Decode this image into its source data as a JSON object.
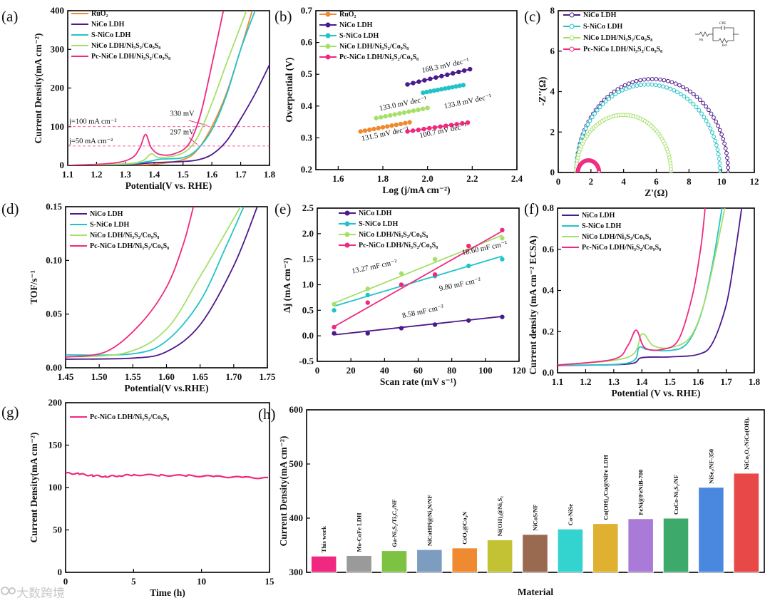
{
  "colors": {
    "ruo2": "#F08a30",
    "nico": "#4B1A8C",
    "snico": "#22C3C8",
    "nicos": "#A6E06A",
    "pc": "#F0287F"
  },
  "watermark": "大数跨境",
  "chart_data": [
    {
      "id": "a",
      "panel_label": "(a)",
      "type": "line",
      "xlabel": "Potential(V vs. RHE)",
      "ylabel": "Current Density(mA cm⁻²)",
      "xlim": [
        1.1,
        1.8
      ],
      "ylim": [
        0,
        400
      ],
      "xticks": [
        "1.1",
        "1.2",
        "1.3",
        "1.4",
        "1.5",
        "1.6",
        "1.7",
        "1.8"
      ],
      "yticks": [
        "0",
        "100",
        "200",
        "300",
        "400"
      ],
      "ref_lines": [
        100,
        50
      ],
      "annotations": [
        {
          "text": "j=100 mA cm⁻²",
          "x": 1.1,
          "y": 108
        },
        {
          "text": "j=50 mA cm⁻²",
          "x": 1.1,
          "y": 57
        },
        {
          "text": "330 mV",
          "x": 1.45,
          "y": 128
        },
        {
          "text": "297 mV",
          "x": 1.45,
          "y": 80
        }
      ],
      "series": [
        {
          "name": "RuO₂",
          "color": "ruo2",
          "points": [
            [
              1.1,
              0
            ],
            [
              1.3,
              1
            ],
            [
              1.4,
              3
            ],
            [
              1.5,
              15
            ],
            [
              1.55,
              40
            ],
            [
              1.6,
              100
            ],
            [
              1.65,
              185
            ],
            [
              1.7,
              300
            ],
            [
              1.74,
              400
            ]
          ]
        },
        {
          "name": "NiCo LDH",
          "color": "nico",
          "points": [
            [
              1.1,
              0
            ],
            [
              1.3,
              2
            ],
            [
              1.4,
              7
            ],
            [
              1.5,
              10
            ],
            [
              1.55,
              14
            ],
            [
              1.6,
              28
            ],
            [
              1.65,
              62
            ],
            [
              1.7,
              120
            ],
            [
              1.75,
              185
            ],
            [
              1.8,
              260
            ]
          ]
        },
        {
          "name": "S-NiCo LDH",
          "color": "snico",
          "points": [
            [
              1.1,
              0
            ],
            [
              1.3,
              3
            ],
            [
              1.38,
              10
            ],
            [
              1.42,
              16
            ],
            [
              1.5,
              20
            ],
            [
              1.55,
              42
            ],
            [
              1.6,
              92
            ],
            [
              1.65,
              180
            ],
            [
              1.7,
              300
            ],
            [
              1.75,
              400
            ]
          ]
        },
        {
          "name": "NiCo LDH/Ni₃S₂/Co₉S₈",
          "color": "nicos",
          "points": [
            [
              1.1,
              0
            ],
            [
              1.3,
              4
            ],
            [
              1.36,
              12
            ],
            [
              1.39,
              30
            ],
            [
              1.42,
              20
            ],
            [
              1.5,
              32
            ],
            [
              1.55,
              72
            ],
            [
              1.6,
              160
            ],
            [
              1.65,
              262
            ],
            [
              1.72,
              400
            ]
          ]
        },
        {
          "name": "Pc-NiCo LDH/Ni₃S₂/Co₉S₈",
          "color": "pc",
          "points": [
            [
              1.1,
              0
            ],
            [
              1.25,
              5
            ],
            [
              1.32,
              18
            ],
            [
              1.35,
              45
            ],
            [
              1.37,
              80
            ],
            [
              1.39,
              45
            ],
            [
              1.42,
              28
            ],
            [
              1.47,
              30
            ],
            [
              1.52,
              55
            ],
            [
              1.56,
              130
            ],
            [
              1.6,
              260
            ],
            [
              1.64,
              400
            ]
          ]
        }
      ]
    },
    {
      "id": "b",
      "panel_label": "(b)",
      "type": "line",
      "xlabel": "Log (j/mA cm⁻²)",
      "ylabel": "Overpential (V)",
      "xlim": [
        1.5,
        2.4
      ],
      "ylim": [
        0.2,
        0.7
      ],
      "xticks": [
        "1.6",
        "1.8",
        "2.0",
        "2.2",
        "2.4"
      ],
      "yticks": [
        "0.2",
        "0.3",
        "0.4",
        "0.5",
        "0.6",
        "0.7"
      ],
      "annotations": [
        {
          "text": "131.5 mV dec⁻¹",
          "x": 1.7,
          "y": 0.29,
          "color": "ruo2"
        },
        {
          "text": "168.3 mV dec⁻¹",
          "x": 1.97,
          "y": 0.505,
          "color": "nico"
        },
        {
          "text": "133.8 mV dec⁻¹",
          "x": 2.0,
          "y": 0.41,
          "color": "snico"
        },
        {
          "text": "133.0 mV dec⁻¹",
          "x": 1.78,
          "y": 0.385,
          "color": "nicos"
        },
        {
          "text": "100.7 mV dec⁻¹",
          "x": 1.96,
          "y": 0.3,
          "color": "pc"
        }
      ],
      "series": [
        {
          "name": "RuO₂",
          "color": "ruo2",
          "line": [
            [
              1.7,
              0.32
            ],
            [
              1.92,
              0.349
            ]
          ]
        },
        {
          "name": "NiCo LDH",
          "color": "nico",
          "line": [
            [
              1.91,
              0.468
            ],
            [
              2.19,
              0.516
            ]
          ]
        },
        {
          "name": "S-NiCo LDH",
          "color": "snico",
          "line": [
            [
              1.98,
              0.442
            ],
            [
              2.16,
              0.466
            ]
          ]
        },
        {
          "name": "NiCo LDH/Ni₃S₂/Co₉S₈",
          "color": "nicos",
          "line": [
            [
              1.77,
              0.362
            ],
            [
              2.0,
              0.394
            ]
          ]
        },
        {
          "name": "Pc-NiCo LDH/Ni₃S₂/Co₉S₈",
          "color": "pc",
          "line": [
            [
              1.91,
              0.32
            ],
            [
              2.18,
              0.348
            ]
          ]
        }
      ]
    },
    {
      "id": "c",
      "panel_label": "(c)",
      "type": "scatter",
      "xlabel": "Z'(Ω)",
      "ylabel": "-Z''(Ω)",
      "xlim": [
        0,
        12
      ],
      "ylim": [
        0,
        8
      ],
      "xticks": [
        "0",
        "2",
        "4",
        "6",
        "8",
        "10",
        "12"
      ],
      "yticks": [
        "0",
        "2",
        "4",
        "6",
        "8"
      ],
      "circuit_labels": [
        "Rs",
        "CPE",
        "Rct"
      ],
      "series": [
        {
          "name": "NiCo LDH",
          "color": "nico",
          "arc": [
            1.1,
            10.4,
            4.62
          ]
        },
        {
          "name": "S-NiCo LDH",
          "color": "snico",
          "arc": [
            1.1,
            9.9,
            4.35
          ]
        },
        {
          "name": "NiCo LDH/Ni₃S₂/Co₉S₈",
          "color": "nicos",
          "arc": [
            1.1,
            6.9,
            2.85
          ]
        },
        {
          "name": "Pc-NiCo LDH/Ni₃S₂/Co₉S₈",
          "color": "pc",
          "arc": [
            1.2,
            2.5,
            0.6
          ]
        }
      ]
    },
    {
      "id": "d",
      "panel_label": "(d)",
      "type": "line",
      "xlabel": "Potential(V vs.RHE)",
      "ylabel": "TOF/s⁻¹",
      "xlim": [
        1.45,
        1.75
      ],
      "ylim": [
        0,
        0.15
      ],
      "xticks": [
        "1.45",
        "1.50",
        "1.55",
        "1.60",
        "1.65",
        "1.70",
        "1.75"
      ],
      "yticks": [
        "0.00",
        "0.05",
        "0.10",
        "0.15"
      ],
      "series": [
        {
          "name": "NiCo LDH",
          "color": "nico",
          "points": [
            [
              1.45,
              0.008
            ],
            [
              1.55,
              0.009
            ],
            [
              1.6,
              0.015
            ],
            [
              1.65,
              0.04
            ],
            [
              1.7,
              0.095
            ],
            [
              1.735,
              0.15
            ]
          ]
        },
        {
          "name": "S-NiCo LDH",
          "color": "snico",
          "points": [
            [
              1.45,
              0.012
            ],
            [
              1.55,
              0.013
            ],
            [
              1.6,
              0.025
            ],
            [
              1.65,
              0.062
            ],
            [
              1.69,
              0.115
            ],
            [
              1.715,
              0.15
            ]
          ]
        },
        {
          "name": "NiCo LDH/Ni₃S₂/Co₉S₈",
          "color": "nicos",
          "points": [
            [
              1.45,
              0.01
            ],
            [
              1.54,
              0.014
            ],
            [
              1.6,
              0.036
            ],
            [
              1.65,
              0.085
            ],
            [
              1.71,
              0.15
            ]
          ]
        },
        {
          "name": "Pc-NiCo LDH/Ni₃S₂/Co₉S₈",
          "color": "pc",
          "points": [
            [
              1.45,
              0.01
            ],
            [
              1.51,
              0.015
            ],
            [
              1.56,
              0.04
            ],
            [
              1.6,
              0.075
            ],
            [
              1.625,
              0.115
            ],
            [
              1.64,
              0.15
            ]
          ]
        }
      ]
    },
    {
      "id": "e",
      "panel_label": "(e)",
      "type": "scatter",
      "xlabel": "Scan rate (mV s⁻¹)",
      "ylabel": "Δj (mA cm⁻²)",
      "xlim": [
        0,
        120
      ],
      "ylim": [
        -0.5,
        2.5
      ],
      "xticks": [
        "0",
        "20",
        "40",
        "60",
        "80",
        "100",
        "120"
      ],
      "yticks": [
        "-0.5",
        "0.0",
        "0.5",
        "1.0",
        "1.5",
        "2.0",
        "2.5"
      ],
      "x": [
        10,
        30,
        50,
        70,
        90,
        110
      ],
      "annotations": [
        {
          "text": "8.58 mF cm⁻²",
          "x": 50,
          "y": 0.35,
          "color": "nico"
        },
        {
          "text": "9.80 mF cm⁻²",
          "x": 72,
          "y": 0.88,
          "color": "snico"
        },
        {
          "text": "13.27 mF cm⁻²",
          "x": 20,
          "y": 1.22,
          "color": "nicos"
        },
        {
          "text": "18.60 mF cm⁻²",
          "x": 83,
          "y": 1.72,
          "color": "pc"
        }
      ],
      "series": [
        {
          "name": "NiCo LDH",
          "color": "nico",
          "values": [
            0.05,
            0.05,
            0.15,
            0.22,
            0.3,
            0.37
          ],
          "fit": [
            0.02,
            0.38
          ]
        },
        {
          "name": "S-NiCo LDH",
          "color": "snico",
          "values": [
            0.5,
            0.8,
            1.0,
            1.17,
            1.37,
            1.5
          ],
          "fit": [
            0.58,
            1.56
          ]
        },
        {
          "name": "NiCo LDH/Ni₃S₂/Co₉S₈",
          "color": "nicos",
          "values": [
            0.62,
            0.92,
            1.22,
            1.5,
            1.76,
            1.91
          ],
          "fit": [
            0.64,
            1.97
          ]
        },
        {
          "name": "Pc-NiCo LDH/Ni₃S₂/Co₉S₈",
          "color": "pc",
          "values": [
            0.17,
            0.65,
            1.0,
            1.2,
            1.76,
            2.07
          ],
          "fit": [
            0.18,
            2.05
          ]
        }
      ]
    },
    {
      "id": "f",
      "panel_label": "(f)",
      "type": "line",
      "xlabel": "Potential (V vs. RHE)",
      "ylabel": "Current density (mA cm⁻² ECSA)",
      "xlim": [
        1.1,
        1.8
      ],
      "ylim": [
        -0.05,
        0.8
      ],
      "xticks": [
        "1.1",
        "1.2",
        "1.3",
        "1.4",
        "1.5",
        "1.6",
        "1.7",
        "1.8"
      ],
      "yticks": [
        "0.0",
        "0.2",
        "0.4",
        "0.6",
        "0.8"
      ],
      "series": [
        {
          "name": "NiCo LDH",
          "color": "nico",
          "points": [
            [
              1.1,
              -0.012
            ],
            [
              1.35,
              -0.005
            ],
            [
              1.4,
              0.028
            ],
            [
              1.5,
              0.032
            ],
            [
              1.6,
              0.045
            ],
            [
              1.65,
              0.1
            ],
            [
              1.7,
              0.3
            ],
            [
              1.73,
              0.55
            ],
            [
              1.755,
              0.8
            ]
          ]
        },
        {
          "name": "S-NiCo LDH",
          "color": "snico",
          "points": [
            [
              1.1,
              -0.01
            ],
            [
              1.35,
              0.0
            ],
            [
              1.39,
              0.08
            ],
            [
              1.42,
              0.07
            ],
            [
              1.5,
              0.065
            ],
            [
              1.56,
              0.1
            ],
            [
              1.61,
              0.25
            ],
            [
              1.65,
              0.5
            ],
            [
              1.685,
              0.8
            ]
          ]
        },
        {
          "name": "NiCo LDH/Ni₃S₂/Co₉S₈",
          "color": "nicos",
          "points": [
            [
              1.1,
              -0.01
            ],
            [
              1.35,
              0.03
            ],
            [
              1.4,
              0.15
            ],
            [
              1.44,
              0.09
            ],
            [
              1.5,
              0.08
            ],
            [
              1.57,
              0.13
            ],
            [
              1.62,
              0.3
            ],
            [
              1.66,
              0.55
            ],
            [
              1.695,
              0.8
            ]
          ]
        },
        {
          "name": "Pc-NiCo LDH/Ni₃S₂/Co₉S₈",
          "color": "pc",
          "points": [
            [
              1.1,
              -0.01
            ],
            [
              1.3,
              0.02
            ],
            [
              1.35,
              0.09
            ],
            [
              1.38,
              0.17
            ],
            [
              1.41,
              0.08
            ],
            [
              1.47,
              0.07
            ],
            [
              1.53,
              0.12
            ],
            [
              1.58,
              0.35
            ],
            [
              1.61,
              0.6
            ],
            [
              1.625,
              0.8
            ]
          ]
        }
      ]
    },
    {
      "id": "g",
      "panel_label": "(g)",
      "type": "line",
      "xlabel": "Time (h)",
      "ylabel": "Current Density(mA cm⁻²)",
      "xlim": [
        0,
        15
      ],
      "ylim": [
        0,
        200
      ],
      "xticks": [
        "0",
        "5",
        "10",
        "15"
      ],
      "yticks": [
        "0",
        "50",
        "100",
        "150",
        "200"
      ],
      "series": [
        {
          "name": "Pc-NiCo LDH/Ni₃S₂/Co₉S₈",
          "color": "pc",
          "points": [
            [
              0,
              117
            ],
            [
              1,
              116
            ],
            [
              2,
              114
            ],
            [
              3,
              113
            ],
            [
              4,
              114
            ],
            [
              5,
              115
            ],
            [
              7,
              114.5
            ],
            [
              9,
              114
            ],
            [
              11,
              113
            ],
            [
              13,
              112
            ],
            [
              15,
              111
            ]
          ]
        }
      ]
    },
    {
      "id": "h",
      "panel_label": "(h)",
      "type": "bar",
      "xlabel": "Material",
      "ylabel": "Current Density(mA cm⁻²)",
      "ylim": [
        300,
        600
      ],
      "yticks": [
        "300",
        "400",
        "500",
        "600"
      ],
      "categories": [
        "This work",
        "Mo-CoFe LDH",
        "Ga-Ni₃S₂/Ti₃C₂/NF",
        "NiCoHPi@Ni₃N/NF",
        "CeO₂@Co₄N",
        "Ni(OH)₂@Ni₃S₂",
        "NiCoS/NF",
        "Co-NiSe",
        "Cu(OH)₂/Cu@NiFe LDH",
        "FeNi@FeNiB-700",
        "CuCo-Ni₃S₂/NF",
        "NiSe₂/NF-350",
        "NiCo₂O₄-NiCo(OH)ₓ"
      ],
      "values": [
        330,
        331,
        340,
        342,
        345,
        360,
        370,
        380,
        390,
        399,
        400,
        457,
        483
      ],
      "bar_colors": [
        "#F0287F",
        "#9a9a9a",
        "#7DC242",
        "#7C9CC0",
        "#F08a30",
        "#C2C234",
        "#9A6A50",
        "#33D4D0",
        "#E0B030",
        "#A97AD8",
        "#3DAA6C",
        "#4A88E0",
        "#E84848"
      ]
    }
  ]
}
